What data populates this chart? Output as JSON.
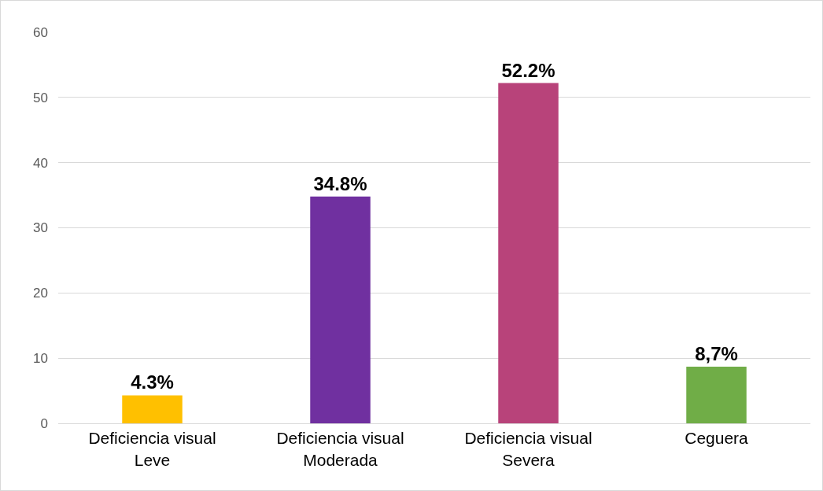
{
  "chart_data": {
    "type": "bar",
    "categories": [
      "Deficiencia visual Leve",
      "Deficiencia visual Moderada",
      "Deficiencia visual Severa",
      "Ceguera"
    ],
    "values": [
      4.3,
      34.8,
      52.2,
      8.7
    ],
    "colors": [
      "#ffc000",
      "#7030a0",
      "#b8437a",
      "#70ad47"
    ],
    "value_labels": [
      "4.3%",
      "34.8%",
      "52.2%",
      "8,7%"
    ],
    "ylim": [
      0,
      60
    ],
    "yticks": [
      0,
      10,
      20,
      30,
      40,
      50,
      60
    ],
    "grid": "y"
  }
}
